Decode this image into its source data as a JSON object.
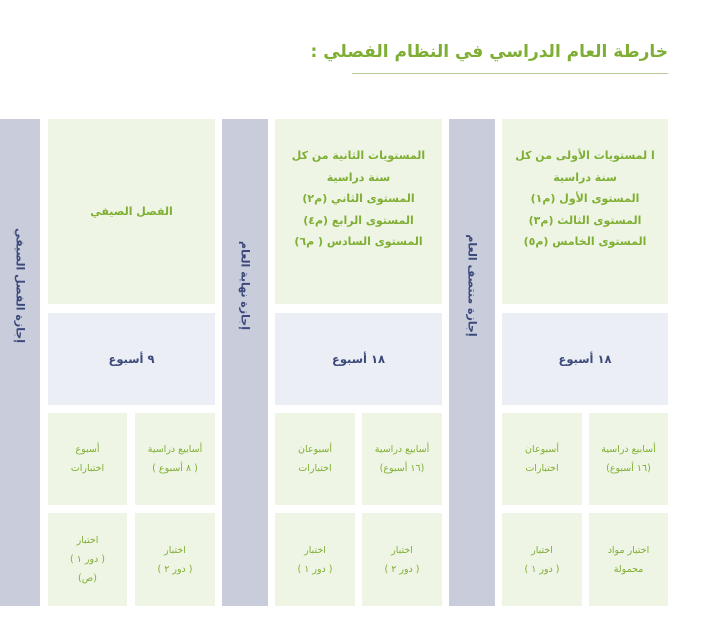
{
  "title": "خارطة العام الدراسي في النظام الفصلي :",
  "colors": {
    "accent_green": "#7fae34",
    "box_green": "#eff5e4",
    "bar_gray": "#c9ccdb",
    "week_box": "#eceef5",
    "navy_text": "#3b4a7a"
  },
  "breaks": {
    "summer": "إجازة الفصل الصيفي",
    "year_end": "إجازة نهاية العام",
    "mid_year": "إجازة منتصف العام"
  },
  "first_semester": {
    "levels": [
      "ا لمستويات الأولى من كل",
      "سنة دراسية",
      "المستوى الأول (م١)",
      "المستوى الثالث (م٣)",
      "المستوى الخامس (م٥)"
    ],
    "weeks": "١٨ أسبوع",
    "study": [
      "أسابيع دراسية",
      "(١٦ أسبوع)"
    ],
    "exams": [
      "أسبوعان",
      "اختبارات"
    ],
    "carry_exam": [
      "اختبار مواد",
      "محمولة"
    ],
    "exam_round": [
      "اختبار",
      "( دور ١ )"
    ]
  },
  "second_semester": {
    "levels": [
      "المستويات الثانية  من كل",
      "سنة دراسية",
      "المستوى الثاني (م٢)",
      "المستوى الرابع (م٤)",
      "المستوى السادس ( م٦)"
    ],
    "weeks": "١٨ أسبوع",
    "study": [
      "أسابيع دراسية",
      "(١٦ أسبوع)"
    ],
    "exams": [
      "أسبوعان",
      "اختبارات"
    ],
    "exam_round2": [
      "اختبار",
      "( دور ٢ )"
    ],
    "exam_round1": [
      "اختبار",
      "( دور ١ )"
    ]
  },
  "summer_semester": {
    "title": "الفصل الصيفي",
    "weeks": "٩ أسبوع",
    "study": [
      "أسابيع دراسية",
      "( ٨ أسبوع )"
    ],
    "exams": [
      "أسبوع",
      "اختبارات"
    ],
    "exam_round2": [
      "اختبار",
      "( دور ٢ )"
    ],
    "exam_round1": [
      "اختبار",
      "( دور ١ )",
      "(ص)"
    ]
  }
}
